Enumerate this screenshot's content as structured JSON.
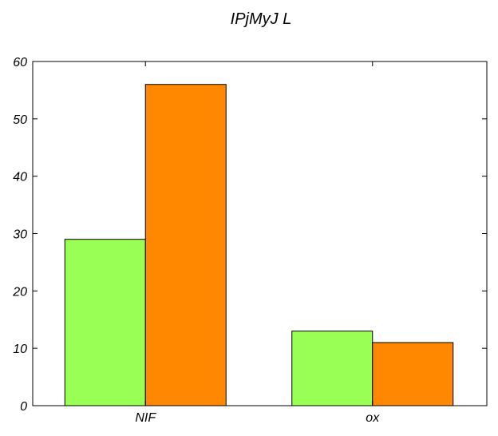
{
  "chart_data": {
    "type": "bar",
    "title": "IPjMyJ L",
    "xlabel": "",
    "ylabel": "",
    "categories": [
      "NIF",
      "ox"
    ],
    "series": [
      {
        "values": [
          29,
          13
        ],
        "color": "#99ff55"
      },
      {
        "values": [
          56,
          11
        ],
        "color": "#ff8800"
      }
    ],
    "ylim": [
      0,
      60
    ],
    "yticks": [
      0,
      10,
      20,
      30,
      40,
      50,
      60
    ],
    "grid": false,
    "legend": "none"
  }
}
